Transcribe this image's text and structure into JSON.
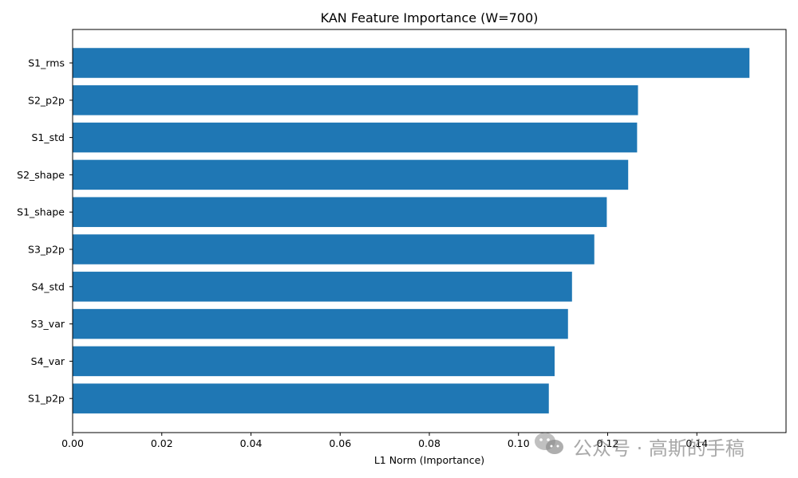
{
  "chart_data": {
    "type": "bar",
    "orientation": "horizontal",
    "title": "KAN Feature Importance (W=700)",
    "xlabel": "L1 Norm (Importance)",
    "ylabel": "",
    "categories": [
      "S1_rms",
      "S2_p2p",
      "S1_std",
      "S2_shape",
      "S1_shape",
      "S3_p2p",
      "S4_std",
      "S3_var",
      "S4_var",
      "S1_p2p"
    ],
    "values": [
      0.1518,
      0.1268,
      0.1266,
      0.1246,
      0.1198,
      0.117,
      0.112,
      0.1111,
      0.1081,
      0.1068
    ],
    "xlim": [
      0.0,
      0.16
    ],
    "xticks": [
      0.0,
      0.02,
      0.04,
      0.06,
      0.08,
      0.1,
      0.12,
      0.14
    ],
    "xtick_labels": [
      "0.00",
      "0.02",
      "0.04",
      "0.06",
      "0.08",
      "0.10",
      "0.12",
      "0.14"
    ],
    "bar_color": "#1f77b4",
    "grid": false,
    "legend": "none"
  },
  "watermark": {
    "icon": "wechat-icon",
    "text": "公众号 · 高斯的手稿"
  }
}
